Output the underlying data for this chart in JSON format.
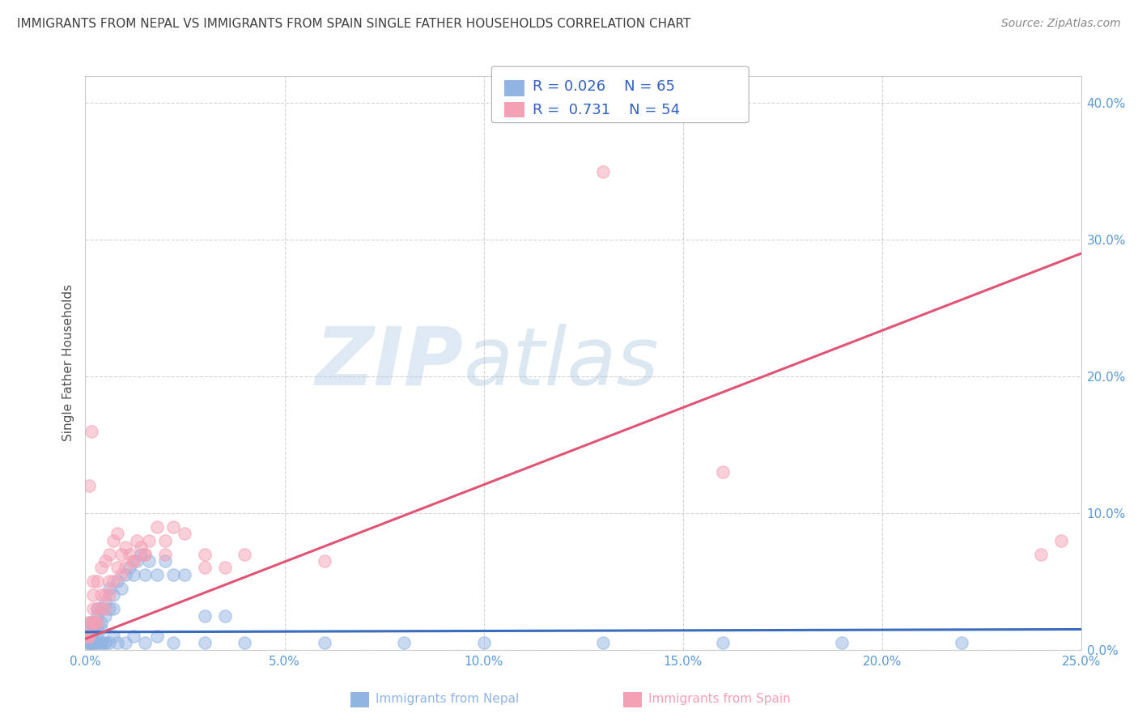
{
  "title": "IMMIGRANTS FROM NEPAL VS IMMIGRANTS FROM SPAIN SINGLE FATHER HOUSEHOLDS CORRELATION CHART",
  "source": "Source: ZipAtlas.com",
  "ylabel": "Single Father Households",
  "xlim": [
    0.0,
    0.25
  ],
  "ylim": [
    0.0,
    0.42
  ],
  "xticks": [
    0.0,
    0.05,
    0.1,
    0.15,
    0.2,
    0.25
  ],
  "xticklabels": [
    "0.0%",
    "5.0%",
    "10.0%",
    "15.0%",
    "20.0%",
    "25.0%"
  ],
  "yticks_right": [
    0.0,
    0.1,
    0.2,
    0.3,
    0.4
  ],
  "yticklabels_right": [
    "0.0%",
    "10.0%",
    "20.0%",
    "30.0%",
    "40.0%"
  ],
  "nepal_color": "#92b4e3",
  "spain_color": "#f4a0b5",
  "nepal_line_color": "#3a6bbf",
  "spain_line_color": "#e05575",
  "nepal_R": 0.026,
  "nepal_N": 65,
  "spain_R": 0.731,
  "spain_N": 54,
  "nepal_label": "Immigrants from Nepal",
  "spain_label": "Immigrants from Spain",
  "watermark_zip": "ZIP",
  "watermark_atlas": "atlas",
  "background_color": "#ffffff",
  "grid_color": "#c8c8c8",
  "title_color": "#404040",
  "tick_color": "#5b9bd5",
  "legend_color": "#3060c0",
  "nepal_scatter_x": [
    0.0005,
    0.001,
    0.001,
    0.0015,
    0.002,
    0.002,
    0.0025,
    0.003,
    0.003,
    0.003,
    0.004,
    0.004,
    0.004,
    0.005,
    0.005,
    0.006,
    0.006,
    0.007,
    0.007,
    0.008,
    0.009,
    0.01,
    0.011,
    0.012,
    0.013,
    0.014,
    0.015,
    0.016,
    0.018,
    0.02,
    0.022,
    0.025,
    0.03,
    0.035,
    0.0005,
    0.001,
    0.0015,
    0.002,
    0.002,
    0.003,
    0.003,
    0.004,
    0.005,
    0.006,
    0.007,
    0.008,
    0.01,
    0.012,
    0.015,
    0.018,
    0.022,
    0.03,
    0.04,
    0.06,
    0.08,
    0.1,
    0.13,
    0.16,
    0.19,
    0.22,
    0.001,
    0.002,
    0.003,
    0.004,
    0.005
  ],
  "nepal_scatter_y": [
    0.01,
    0.02,
    0.015,
    0.01,
    0.02,
    0.015,
    0.02,
    0.025,
    0.015,
    0.03,
    0.02,
    0.03,
    0.015,
    0.025,
    0.035,
    0.03,
    0.045,
    0.04,
    0.03,
    0.05,
    0.045,
    0.055,
    0.06,
    0.055,
    0.065,
    0.07,
    0.055,
    0.065,
    0.055,
    0.065,
    0.055,
    0.055,
    0.025,
    0.025,
    0.005,
    0.005,
    0.005,
    0.005,
    0.005,
    0.005,
    0.01,
    0.005,
    0.005,
    0.005,
    0.01,
    0.005,
    0.005,
    0.01,
    0.005,
    0.01,
    0.005,
    0.005,
    0.005,
    0.005,
    0.005,
    0.005,
    0.005,
    0.005,
    0.005,
    0.005,
    0.005,
    0.005,
    0.005,
    0.005,
    0.005
  ],
  "spain_scatter_x": [
    0.0005,
    0.0008,
    0.001,
    0.001,
    0.0015,
    0.002,
    0.002,
    0.0025,
    0.003,
    0.003,
    0.004,
    0.004,
    0.005,
    0.005,
    0.006,
    0.006,
    0.007,
    0.008,
    0.009,
    0.01,
    0.011,
    0.012,
    0.013,
    0.014,
    0.015,
    0.016,
    0.018,
    0.02,
    0.022,
    0.025,
    0.03,
    0.035,
    0.001,
    0.0015,
    0.002,
    0.002,
    0.003,
    0.004,
    0.005,
    0.006,
    0.007,
    0.008,
    0.009,
    0.01,
    0.012,
    0.015,
    0.02,
    0.03,
    0.04,
    0.06,
    0.16,
    0.13,
    0.245,
    0.24
  ],
  "spain_scatter_y": [
    0.01,
    0.01,
    0.02,
    0.01,
    0.02,
    0.02,
    0.03,
    0.02,
    0.03,
    0.02,
    0.03,
    0.04,
    0.04,
    0.03,
    0.04,
    0.05,
    0.05,
    0.06,
    0.055,
    0.06,
    0.07,
    0.065,
    0.08,
    0.075,
    0.07,
    0.08,
    0.09,
    0.08,
    0.09,
    0.085,
    0.07,
    0.06,
    0.12,
    0.16,
    0.04,
    0.05,
    0.05,
    0.06,
    0.065,
    0.07,
    0.08,
    0.085,
    0.07,
    0.075,
    0.065,
    0.07,
    0.07,
    0.06,
    0.07,
    0.065,
    0.13,
    0.35,
    0.08,
    0.07
  ],
  "nepal_trend_x": [
    0.0,
    0.25
  ],
  "nepal_trend_y": [
    0.013,
    0.015
  ],
  "spain_trend_x": [
    0.0,
    0.25
  ],
  "spain_trend_y": [
    0.008,
    0.29
  ]
}
